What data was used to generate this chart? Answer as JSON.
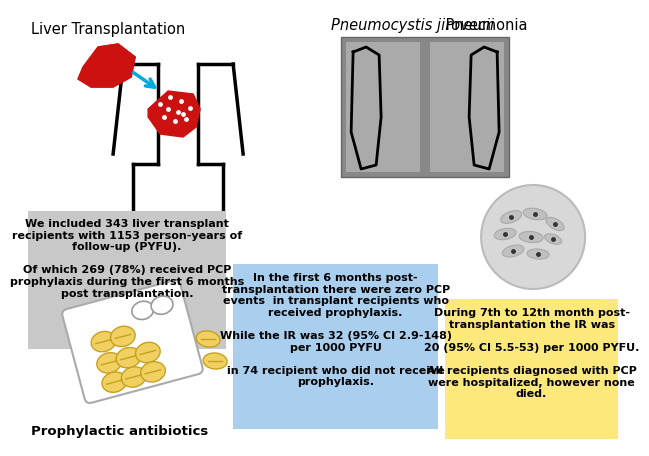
{
  "title_left": "Liver Transplantation",
  "title_right_italic": "Pneumocystis jirovecii",
  "title_right_normal": " Pneumonia",
  "box1_text": "We included 343 liver transplant\nrecipients with 1153 person-years of\nfollow-up (PYFU).\n\nOf which 269 (78%) received PCP\nprophylaxis during the first 6 months\npost transplantation.",
  "box2_text": "In the first 6 months post-\ntransplantation there were zero PCP\nevents  in transplant recipients who\nreceived prophylaxis.\n\nWhile the IR was 32 (95% CI 2.9-148)\nper 1000 PYFU\n\nin 74 recipient who did not receive\nprophylaxis.",
  "box3_text": "During 7th to 12th month post-\ntransplantation the IR was\n\n20 (95% CI 5.5-53) per 1000 PYFU.\n\nAll recipients diagnosed with PCP\nwere hospitalized, however none\ndied.",
  "label_antibiotics": "Prophylactic antibiotics",
  "box1_color": "#c8c8c8",
  "box2_color": "#aacfee",
  "box3_color": "#fde87c",
  "background_color": "#ffffff",
  "text_color": "#000000",
  "figwidth": 6.0,
  "figheight": 4.37
}
